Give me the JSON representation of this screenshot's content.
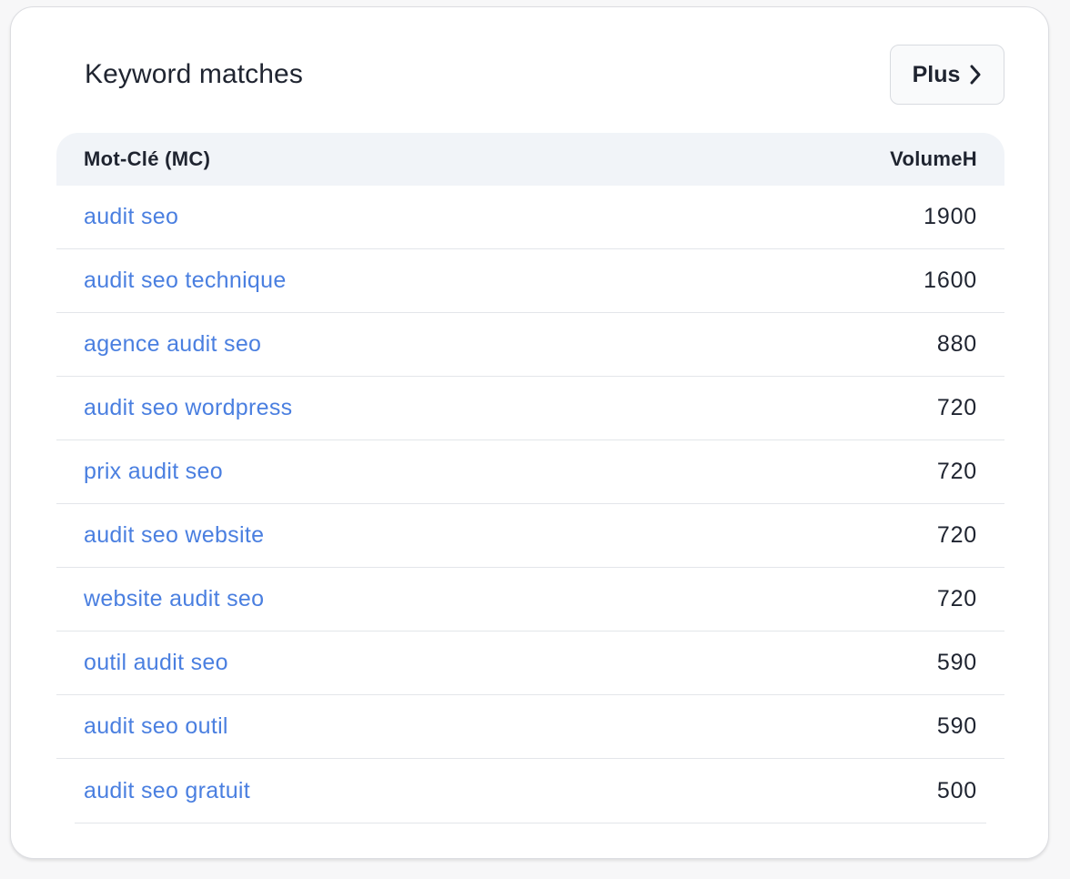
{
  "card": {
    "title": "Keyword matches",
    "more_button": {
      "label": "Plus",
      "icon": "chevron-right-icon"
    }
  },
  "table": {
    "columns": {
      "keyword": "Mot-Clé (MC)",
      "volume": "VolumeH"
    },
    "rows": [
      {
        "keyword": "audit seo",
        "volume": "1900"
      },
      {
        "keyword": "audit seo technique",
        "volume": "1600"
      },
      {
        "keyword": "agence audit seo",
        "volume": "880"
      },
      {
        "keyword": "audit seo wordpress",
        "volume": "720"
      },
      {
        "keyword": "prix audit seo",
        "volume": "720"
      },
      {
        "keyword": "audit seo website",
        "volume": "720"
      },
      {
        "keyword": "website audit seo",
        "volume": "720"
      },
      {
        "keyword": "outil audit seo",
        "volume": "590"
      },
      {
        "keyword": "audit seo outil",
        "volume": "590"
      },
      {
        "keyword": "audit seo gratuit",
        "volume": "500"
      }
    ]
  },
  "colors": {
    "link": "#4a7fe0",
    "text": "#1f2430",
    "header_bg": "#f1f4f8",
    "divider": "#e3e6ea"
  }
}
